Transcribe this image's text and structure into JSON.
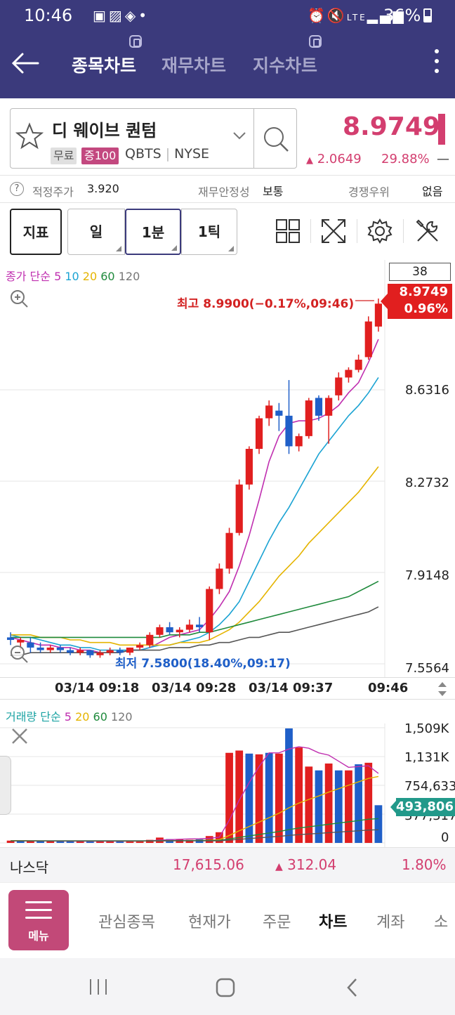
{
  "status_bar": {
    "time": "10:46",
    "left_icons": [
      "calendar-icon",
      "gallery-icon",
      "app-icon",
      "dot"
    ],
    "right_icons": [
      "alarm-icon",
      "mute-icon",
      "lte-icon",
      "signal-icon"
    ],
    "battery": "36%"
  },
  "header": {
    "tabs": [
      {
        "label": "종목차트",
        "active": true
      },
      {
        "label": "재무차트",
        "active": false
      },
      {
        "label": "지수차트",
        "active": false
      }
    ]
  },
  "stock": {
    "name": "디 웨이브 퀀텀",
    "tag_free": "무료",
    "tag_margin": "증100",
    "ticker": "QBTS",
    "exchange": "NYSE",
    "ticker_line": "QBTS | NYSE",
    "price": "8.9749",
    "change": "2.0649",
    "change_pct": "29.88%",
    "change_dash": "—",
    "accent_color": "#d33e6f"
  },
  "info_row": {
    "fair_price_label": "적정주가",
    "fair_price_value": "3.920",
    "stability_label": "재무안정성",
    "stability_value": "보통",
    "competition_label": "경쟁우위",
    "competition_value": "없음"
  },
  "toolbar": {
    "indicator": "지표",
    "day": "일",
    "one_min": "1분",
    "one_tick": "1틱",
    "icons": [
      "grid-icon",
      "expand-icon",
      "settings-icon",
      "tools-icon"
    ]
  },
  "chart": {
    "price_legend": {
      "label": "종가 단순",
      "periods": [
        "5",
        "10",
        "20",
        "60",
        "120"
      ]
    },
    "volume_legend": {
      "label": "거래량 단순",
      "periods": [
        "5",
        "20",
        "60",
        "120"
      ]
    },
    "count": "38",
    "last_price": "8.9749",
    "last_pct": "0.96%",
    "high_label": "최고 8.9900(−0.17%,09:46)",
    "low_label": "최저 7.5800(18.40%,09:17)",
    "y_labels": [
      "8.6316",
      "8.2732",
      "7.9148",
      "7.5564"
    ],
    "x_labels": [
      "03/14 09:18",
      "03/14 09:28",
      "03/14 09:37",
      "09:46"
    ],
    "vol_y_labels": [
      "1,509K",
      "1,131K",
      "754,633",
      "377,317",
      "0"
    ],
    "vol_last": "493,806"
  },
  "chart_data": [
    {
      "type": "candlestick",
      "title": "종가 단순 5 10 20 60 120",
      "ylim": [
        7.5564,
        8.99
      ],
      "y_ticks": [
        7.5564,
        7.9148,
        8.2732,
        8.6316
      ],
      "x_ticks": [
        "03/14 09:18",
        "03/14 09:28",
        "03/14 09:37",
        "09:46"
      ],
      "high": 8.99,
      "low": 7.58,
      "last": 8.9749,
      "candles": [
        {
          "o": 7.66,
          "h": 7.68,
          "l": 7.63,
          "c": 7.65
        },
        {
          "o": 7.64,
          "h": 7.66,
          "l": 7.61,
          "c": 7.65
        },
        {
          "o": 7.64,
          "h": 7.66,
          "l": 7.6,
          "c": 7.62
        },
        {
          "o": 7.62,
          "h": 7.64,
          "l": 7.6,
          "c": 7.61
        },
        {
          "o": 7.61,
          "h": 7.63,
          "l": 7.6,
          "c": 7.62
        },
        {
          "o": 7.62,
          "h": 7.63,
          "l": 7.6,
          "c": 7.61
        },
        {
          "o": 7.61,
          "h": 7.62,
          "l": 7.59,
          "c": 7.6
        },
        {
          "o": 7.6,
          "h": 7.62,
          "l": 7.59,
          "c": 7.61
        },
        {
          "o": 7.61,
          "h": 7.61,
          "l": 7.58,
          "c": 7.59
        },
        {
          "o": 7.59,
          "h": 7.61,
          "l": 7.58,
          "c": 7.6
        },
        {
          "o": 7.6,
          "h": 7.62,
          "l": 7.59,
          "c": 7.61
        },
        {
          "o": 7.61,
          "h": 7.62,
          "l": 7.59,
          "c": 7.6
        },
        {
          "o": 7.6,
          "h": 7.62,
          "l": 7.59,
          "c": 7.62
        },
        {
          "o": 7.62,
          "h": 7.64,
          "l": 7.61,
          "c": 7.63
        },
        {
          "o": 7.63,
          "h": 7.68,
          "l": 7.62,
          "c": 7.67
        },
        {
          "o": 7.67,
          "h": 7.71,
          "l": 7.66,
          "c": 7.7
        },
        {
          "o": 7.7,
          "h": 7.72,
          "l": 7.67,
          "c": 7.68
        },
        {
          "o": 7.68,
          "h": 7.7,
          "l": 7.66,
          "c": 7.69
        },
        {
          "o": 7.69,
          "h": 7.73,
          "l": 7.68,
          "c": 7.71
        },
        {
          "o": 7.71,
          "h": 7.74,
          "l": 7.68,
          "c": 7.7
        },
        {
          "o": 7.68,
          "h": 7.86,
          "l": 7.65,
          "c": 7.85
        },
        {
          "o": 7.85,
          "h": 7.95,
          "l": 7.83,
          "c": 7.93
        },
        {
          "o": 7.93,
          "h": 8.09,
          "l": 7.91,
          "c": 8.07
        },
        {
          "o": 8.07,
          "h": 8.28,
          "l": 8.06,
          "c": 8.26
        },
        {
          "o": 8.26,
          "h": 8.41,
          "l": 8.24,
          "c": 8.4
        },
        {
          "o": 8.4,
          "h": 8.53,
          "l": 8.38,
          "c": 8.52
        },
        {
          "o": 8.52,
          "h": 8.59,
          "l": 8.49,
          "c": 8.57
        },
        {
          "o": 8.55,
          "h": 8.58,
          "l": 8.47,
          "c": 8.53
        },
        {
          "o": 8.53,
          "h": 8.67,
          "l": 8.38,
          "c": 8.41
        },
        {
          "o": 8.41,
          "h": 8.46,
          "l": 8.39,
          "c": 8.45
        },
        {
          "o": 8.45,
          "h": 8.6,
          "l": 8.44,
          "c": 8.59
        },
        {
          "o": 8.6,
          "h": 8.61,
          "l": 8.51,
          "c": 8.53
        },
        {
          "o": 8.53,
          "h": 8.61,
          "l": 8.42,
          "c": 8.6
        },
        {
          "o": 8.61,
          "h": 8.7,
          "l": 8.59,
          "c": 8.68
        },
        {
          "o": 8.68,
          "h": 8.72,
          "l": 8.66,
          "c": 8.71
        },
        {
          "o": 8.71,
          "h": 8.77,
          "l": 8.7,
          "c": 8.75
        },
        {
          "o": 8.76,
          "h": 8.92,
          "l": 8.75,
          "c": 8.9
        },
        {
          "o": 8.88,
          "h": 8.99,
          "l": 8.86,
          "c": 8.97
        }
      ],
      "series": [
        {
          "name": "5",
          "color": "#c02fb0",
          "values": [
            7.66,
            7.65,
            7.64,
            7.63,
            7.63,
            7.62,
            7.62,
            7.61,
            7.61,
            7.6,
            7.6,
            7.6,
            7.61,
            7.61,
            7.62,
            7.64,
            7.66,
            7.67,
            7.68,
            7.69,
            7.73,
            7.78,
            7.84,
            7.94,
            8.06,
            8.2,
            8.35,
            8.45,
            8.5,
            8.51,
            8.51,
            8.52,
            8.54,
            8.57,
            8.62,
            8.66,
            8.74,
            8.83
          ]
        },
        {
          "name": "10",
          "color": "#1ba3d3",
          "values": [
            7.67,
            7.66,
            7.66,
            7.65,
            7.64,
            7.63,
            7.63,
            7.62,
            7.62,
            7.61,
            7.61,
            7.61,
            7.61,
            7.61,
            7.62,
            7.63,
            7.63,
            7.64,
            7.65,
            7.66,
            7.68,
            7.71,
            7.75,
            7.8,
            7.88,
            7.96,
            8.04,
            8.11,
            8.17,
            8.24,
            8.31,
            8.38,
            8.43,
            8.48,
            8.53,
            8.57,
            8.62,
            8.68
          ]
        },
        {
          "name": "20",
          "color": "#e5b400",
          "values": [
            7.67,
            7.67,
            7.67,
            7.66,
            7.66,
            7.66,
            7.65,
            7.65,
            7.64,
            7.64,
            7.64,
            7.63,
            7.63,
            7.63,
            7.63,
            7.63,
            7.63,
            7.64,
            7.64,
            7.64,
            7.65,
            7.67,
            7.69,
            7.72,
            7.76,
            7.8,
            7.85,
            7.9,
            7.94,
            7.98,
            8.03,
            8.07,
            8.11,
            8.15,
            8.19,
            8.23,
            8.28,
            8.33
          ]
        },
        {
          "name": "60",
          "color": "#1f8a3c",
          "values": [
            7.66,
            7.66,
            7.66,
            7.66,
            7.66,
            7.66,
            7.66,
            7.66,
            7.66,
            7.66,
            7.66,
            7.66,
            7.66,
            7.66,
            7.66,
            7.66,
            7.67,
            7.67,
            7.67,
            7.68,
            7.68,
            7.69,
            7.7,
            7.71,
            7.72,
            7.73,
            7.74,
            7.75,
            7.76,
            7.77,
            7.78,
            7.79,
            7.8,
            7.81,
            7.82,
            7.84,
            7.86,
            7.88
          ]
        },
        {
          "name": "120",
          "color": "#555555",
          "values": [
            7.59,
            7.59,
            7.6,
            7.6,
            7.6,
            7.6,
            7.6,
            7.6,
            7.6,
            7.6,
            7.6,
            7.6,
            7.61,
            7.61,
            7.61,
            7.61,
            7.62,
            7.62,
            7.62,
            7.63,
            7.63,
            7.64,
            7.64,
            7.65,
            7.66,
            7.66,
            7.67,
            7.68,
            7.68,
            7.69,
            7.7,
            7.71,
            7.72,
            7.73,
            7.74,
            7.75,
            7.76,
            7.78
          ]
        }
      ]
    },
    {
      "type": "bar",
      "title": "거래량 단순 5 20 60 120",
      "ylim": [
        0,
        1509000
      ],
      "y_ticks": [
        0,
        377317,
        754633,
        1131000,
        1509000
      ],
      "last": 493806,
      "values": [
        30000,
        25000,
        28000,
        22000,
        20000,
        24000,
        26000,
        20000,
        18000,
        22000,
        25000,
        20000,
        22000,
        26000,
        40000,
        70000,
        50000,
        45000,
        40000,
        48000,
        90000,
        140000,
        1180000,
        1210000,
        1170000,
        1160000,
        1180000,
        1170000,
        1500000,
        1250000,
        1000000,
        950000,
        1040000,
        950000,
        950000,
        1030000,
        1050000,
        493806
      ],
      "colors_up": [
        true,
        false,
        true,
        false,
        true,
        false,
        false,
        true,
        false,
        true,
        true,
        false,
        true,
        true,
        true,
        true,
        false,
        true,
        true,
        false,
        true,
        true,
        true,
        true,
        false,
        true,
        false,
        true,
        false,
        true,
        true,
        false,
        true,
        false,
        true,
        false,
        true,
        false
      ],
      "series": [
        {
          "name": "5",
          "color": "#c02fb0",
          "values": [
            30000,
            28000,
            27000,
            26000,
            25000,
            24000,
            24000,
            22000,
            22000,
            22000,
            22000,
            22000,
            22000,
            23000,
            27000,
            37000,
            42000,
            48000,
            52000,
            54000,
            60000,
            75000,
            298000,
            560000,
            790000,
            1000000,
            1180000,
            1180000,
            1230000,
            1260000,
            1240000,
            1180000,
            1150000,
            1070000,
            990000,
            1000000,
            1010000,
            910000
          ]
        },
        {
          "name": "20",
          "color": "#e5b400",
          "values": [
            30000,
            29000,
            28000,
            27000,
            26000,
            26000,
            26000,
            25000,
            25000,
            25000,
            25000,
            25000,
            24000,
            24000,
            25000,
            27000,
            28000,
            30000,
            31000,
            32000,
            36000,
            41000,
            98000,
            158000,
            215000,
            272000,
            330000,
            388000,
            460000,
            522000,
            570000,
            615000,
            665000,
            710000,
            755000,
            800000,
            845000,
            870000
          ]
        },
        {
          "name": "60",
          "color": "#1f8a3c",
          "values": [
            28000,
            28000,
            28000,
            28000,
            28000,
            28000,
            28000,
            28000,
            28000,
            28000,
            28000,
            28000,
            28000,
            28000,
            28000,
            29000,
            29000,
            30000,
            30000,
            31000,
            32000,
            34000,
            52000,
            72000,
            91000,
            110000,
            130000,
            149000,
            174000,
            195000,
            211000,
            227000,
            244000,
            260000,
            276000,
            293000,
            310000,
            318000
          ]
        },
        {
          "name": "120",
          "color": "#555555",
          "values": [
            26000,
            26000,
            26000,
            26000,
            26000,
            26000,
            26000,
            26000,
            26000,
            26000,
            26000,
            26000,
            26000,
            26000,
            26000,
            26000,
            27000,
            27000,
            27000,
            27000,
            28000,
            28000,
            37000,
            47000,
            57000,
            66000,
            76000,
            86000,
            98000,
            109000,
            117000,
            125000,
            134000,
            142000,
            150000,
            159000,
            168000,
            172000
          ]
        }
      ]
    }
  ],
  "index_bar": {
    "name": "나스닥",
    "value": "17,615.06",
    "change": "312.04",
    "change_pct": "1.80%"
  },
  "bottom_nav": {
    "menu_label": "메뉴",
    "items": [
      {
        "label": "관심종목",
        "active": false
      },
      {
        "label": "현재가",
        "active": false
      },
      {
        "label": "주문",
        "active": false
      },
      {
        "label": "차트",
        "active": true
      },
      {
        "label": "계좌",
        "active": false
      },
      {
        "label": "소",
        "active": false
      }
    ]
  }
}
